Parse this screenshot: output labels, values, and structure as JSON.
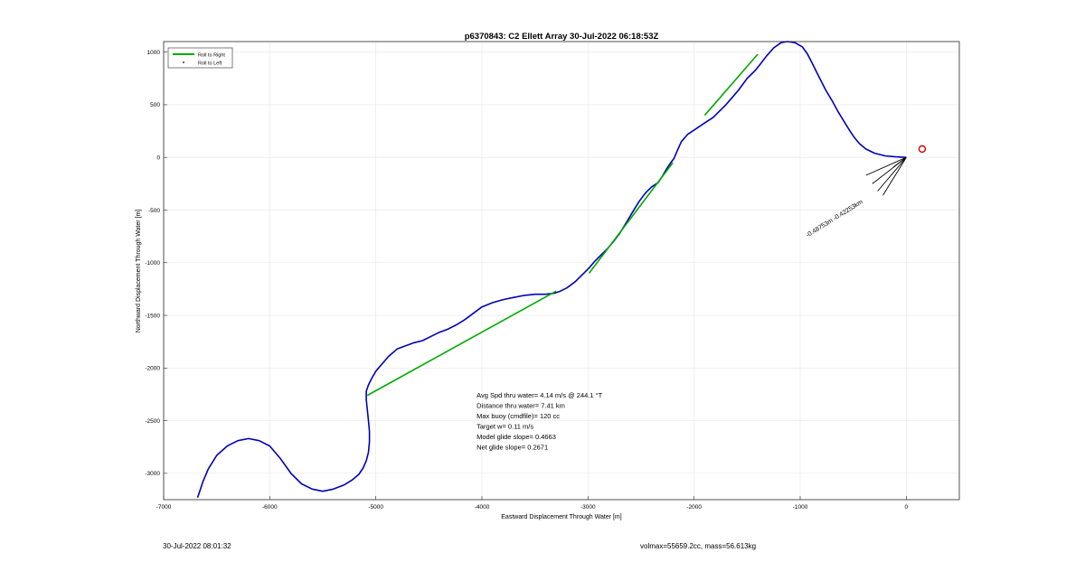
{
  "chart_data": {
    "type": "line",
    "title": "p6370843: C2 Ellett Array 30-Jul-2022 06:18:53Z",
    "xlabel": "Eastward Displacement Through Water [m]",
    "ylabel": "Northward Displacement Through Water [m]",
    "xlim": [
      -7000,
      500
    ],
    "ylim": [
      -3250,
      1100
    ],
    "xticks": [
      -7000,
      -6000,
      -5000,
      -4000,
      -3000,
      -2000,
      -1000,
      0
    ],
    "yticks": [
      -3000,
      -2500,
      -2000,
      -1500,
      -1000,
      -500,
      0,
      500,
      1000
    ],
    "grid": true,
    "legend": {
      "location": "top-left",
      "entries": [
        {
          "label": "Roll to Right",
          "color": "#00aa00",
          "style": "line"
        },
        {
          "label": "Roll to Left",
          "color": "#000000",
          "style": "dot"
        }
      ]
    },
    "series": [
      {
        "color": "#0000bb",
        "x": [
          0,
          -100,
          -200,
          -300,
          -380,
          -440,
          -490,
          -530,
          -580,
          -640,
          -700,
          -760,
          -820,
          -880,
          -930,
          -980,
          -1050,
          -1120,
          -1180,
          -1250,
          -1320,
          -1380,
          -1420,
          -1500,
          -1580,
          -1640,
          -1700,
          -1760,
          -1820,
          -1880,
          -1940,
          -2000,
          -2060,
          -2120,
          -2160,
          -2190,
          -2220,
          -2260,
          -2300,
          -2340,
          -2400,
          -2460,
          -2520,
          -2580,
          -2640,
          -2700,
          -2760,
          -2820,
          -2880,
          -2940,
          -2990,
          -3040,
          -3080,
          -3120,
          -3160,
          -3200,
          -3260,
          -3320,
          -3400,
          -3500,
          -3600,
          -3700,
          -3800,
          -3900,
          -4000,
          -4080,
          -4160,
          -4240,
          -4320,
          -4400,
          -4480,
          -4560,
          -4640,
          -4720,
          -4800,
          -4880,
          -4940,
          -5000,
          -5040,
          -5070,
          -5090,
          -5090,
          -5080,
          -5070,
          -5060,
          -5060,
          -5070,
          -5090,
          -5120,
          -5160,
          -5220,
          -5300,
          -5400,
          -5500,
          -5600,
          -5700,
          -5800,
          -5900,
          -6000,
          -6100,
          -6200,
          -6300,
          -6400,
          -6500,
          -6580,
          -6630,
          -6660,
          -6680
        ],
        "y": [
          0,
          5,
          15,
          40,
          80,
          130,
          190,
          250,
          330,
          430,
          540,
          640,
          760,
          880,
          980,
          1050,
          1090,
          1100,
          1090,
          1040,
          960,
          880,
          830,
          750,
          640,
          570,
          500,
          440,
          380,
          340,
          300,
          260,
          220,
          150,
          60,
          -10,
          -50,
          -110,
          -180,
          -240,
          -280,
          -340,
          -420,
          -520,
          -620,
          -720,
          -800,
          -870,
          -930,
          -990,
          -1050,
          -1100,
          -1140,
          -1180,
          -1210,
          -1240,
          -1270,
          -1290,
          -1300,
          -1300,
          -1310,
          -1330,
          -1350,
          -1380,
          -1420,
          -1480,
          -1540,
          -1590,
          -1630,
          -1660,
          -1700,
          -1740,
          -1760,
          -1790,
          -1820,
          -1890,
          -1960,
          -2030,
          -2100,
          -2160,
          -2220,
          -2300,
          -2400,
          -2500,
          -2600,
          -2700,
          -2800,
          -2880,
          -2950,
          -3010,
          -3060,
          -3110,
          -3150,
          -3170,
          -3150,
          -3100,
          -3000,
          -2860,
          -2740,
          -2690,
          -2670,
          -2690,
          -2740,
          -2830,
          -2960,
          -3080,
          -3170,
          -3230
        ]
      },
      {
        "name": "Roll to Right",
        "color": "#00aa00",
        "segments": [
          [
            [
              -5080,
              -2260
            ],
            [
              -3300,
              -1270
            ]
          ],
          [
            [
              -2990,
              -1100
            ],
            [
              -2200,
              -50
            ]
          ],
          [
            [
              -1900,
              400
            ],
            [
              -1400,
              980
            ]
          ]
        ]
      }
    ],
    "arrows": {
      "color": "#000000",
      "lines": [
        [
          [
            0,
            0
          ],
          [
            -380,
            -170
          ]
        ],
        [
          [
            0,
            0
          ],
          [
            -320,
            -250
          ]
        ],
        [
          [
            0,
            0
          ],
          [
            -270,
            -320
          ]
        ],
        [
          [
            0,
            0
          ],
          [
            -220,
            -360
          ]
        ],
        [
          [
            0,
            0
          ],
          [
            -120,
            -90
          ]
        ]
      ]
    },
    "target_marker": {
      "x": 150,
      "y": 80,
      "color": "#cc0000"
    },
    "rotated_label": {
      "text": "-0.48753m -0.42253km",
      "x": -930,
      "y": -760,
      "angle_deg": -32
    },
    "annotation": {
      "x": -4050,
      "y": -2280,
      "lines": [
        "Avg Spd thru water=  4.14 m/s @ 244.1 °T",
        "Distance thru water=  7.41 km",
        "Max buoy (cmdfile)= 120 cc",
        "Target w= 0.11 m/s",
        "Model glide slope= 0.4663",
        "Net glide slope= 0.2671"
      ]
    }
  },
  "footer": {
    "left": "30-Jul-2022 08:01:32",
    "right": "volmax=55659.2cc, mass=56.613kg"
  }
}
